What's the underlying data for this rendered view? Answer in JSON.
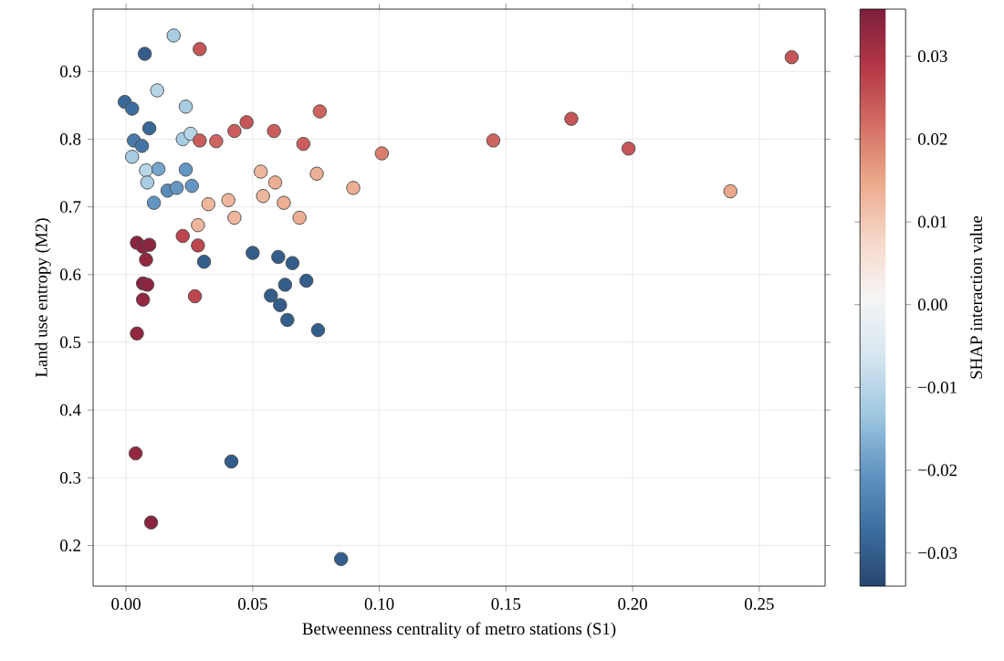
{
  "chart_data": {
    "type": "scatter",
    "xlabel": "Betweenness centrality of metro stations (S1)",
    "ylabel": "Land use entropy (M2)",
    "clabel": "SHAP interaction value",
    "x": [
      0.0188,
      0.0291,
      0.0074,
      0.0123,
      -0.0005,
      0.0024,
      0.0236,
      0.0092,
      0.0476,
      0.0428,
      0.0584,
      0.0031,
      0.0063,
      0.0224,
      0.0255,
      0.0291,
      0.0356,
      0.0024,
      0.0079,
      0.0084,
      0.0128,
      0.0236,
      0.026,
      0.011,
      0.0164,
      0.02,
      0.0325,
      0.0404,
      0.0428,
      0.0284,
      0.0532,
      0.0541,
      0.0765,
      0.07,
      0.101,
      0.145,
      0.0589,
      0.0753,
      0.0897,
      0.0623,
      0.0685,
      0.05,
      0.0601,
      0.0657,
      0.0712,
      0.0628,
      0.0572,
      0.0608,
      0.0637,
      0.0758,
      0.0849,
      0.0224,
      0.0284,
      0.0308,
      0.0272,
      0.0043,
      0.0067,
      0.0092,
      0.0079,
      0.0067,
      0.0084,
      0.0067,
      0.0043,
      0.0416,
      0.0038,
      0.0099,
      0.1758,
      0.1984,
      0.2386,
      0.2628
    ],
    "values": [
      0.953,
      0.933,
      0.926,
      0.872,
      0.855,
      0.845,
      0.848,
      0.816,
      0.825,
      0.812,
      0.812,
      0.798,
      0.79,
      0.8,
      0.808,
      0.798,
      0.797,
      0.774,
      0.754,
      0.736,
      0.756,
      0.755,
      0.731,
      0.706,
      0.724,
      0.728,
      0.704,
      0.71,
      0.684,
      0.673,
      0.752,
      0.716,
      0.841,
      0.793,
      0.779,
      0.798,
      0.736,
      0.749,
      0.728,
      0.706,
      0.684,
      0.632,
      0.626,
      0.617,
      0.591,
      0.585,
      0.569,
      0.555,
      0.533,
      0.518,
      0.18,
      0.657,
      0.643,
      0.619,
      0.568,
      0.647,
      0.641,
      0.644,
      0.622,
      0.587,
      0.585,
      0.563,
      0.513,
      0.324,
      0.336,
      0.234,
      0.83,
      0.786,
      0.723,
      0.921
    ],
    "cvalues": [
      -0.012,
      0.025,
      -0.03,
      -0.01,
      -0.028,
      -0.027,
      -0.012,
      -0.028,
      0.025,
      0.024,
      0.024,
      -0.025,
      -0.026,
      -0.012,
      -0.01,
      0.024,
      0.023,
      -0.012,
      -0.01,
      -0.012,
      -0.018,
      -0.02,
      -0.02,
      -0.02,
      -0.022,
      -0.02,
      0.013,
      0.013,
      0.013,
      0.013,
      0.013,
      0.013,
      0.023,
      0.024,
      0.02,
      0.023,
      0.014,
      0.014,
      0.014,
      0.014,
      0.014,
      -0.03,
      -0.03,
      -0.03,
      -0.03,
      -0.03,
      -0.03,
      -0.03,
      -0.03,
      -0.03,
      -0.03,
      0.027,
      0.027,
      -0.03,
      0.027,
      0.034,
      0.034,
      0.034,
      0.033,
      0.034,
      0.034,
      0.033,
      0.033,
      -0.03,
      0.033,
      0.034,
      0.025,
      0.025,
      0.015,
      0.025
    ],
    "xlim": [
      -0.013,
      0.276
    ],
    "ylim": [
      0.14,
      0.992
    ],
    "xticks": [
      {
        "value": 0,
        "label": "0.00"
      },
      {
        "value": 0.05,
        "label": "0.05"
      },
      {
        "value": 0.1,
        "label": "0.10"
      },
      {
        "value": 0.15,
        "label": "0.15"
      },
      {
        "value": 0.2,
        "label": "0.20"
      },
      {
        "value": 0.25,
        "label": "0.25"
      }
    ],
    "yticks": [
      0.2,
      0.3,
      0.4,
      0.5,
      0.6,
      0.7,
      0.8,
      0.9
    ],
    "clim": [
      -0.034,
      0.0357
    ],
    "cticks": [
      {
        "value": -0.03,
        "label": "−0.03"
      },
      {
        "value": -0.02,
        "label": "−0.02"
      },
      {
        "value": -0.01,
        "label": "−0.01"
      },
      {
        "value": 0,
        "label": "0.00"
      },
      {
        "value": 0.01,
        "label": "0.01"
      },
      {
        "value": 0.02,
        "label": "0.02"
      },
      {
        "value": 0.03,
        "label": "0.03"
      }
    ],
    "grid": true,
    "marker": "circle"
  }
}
